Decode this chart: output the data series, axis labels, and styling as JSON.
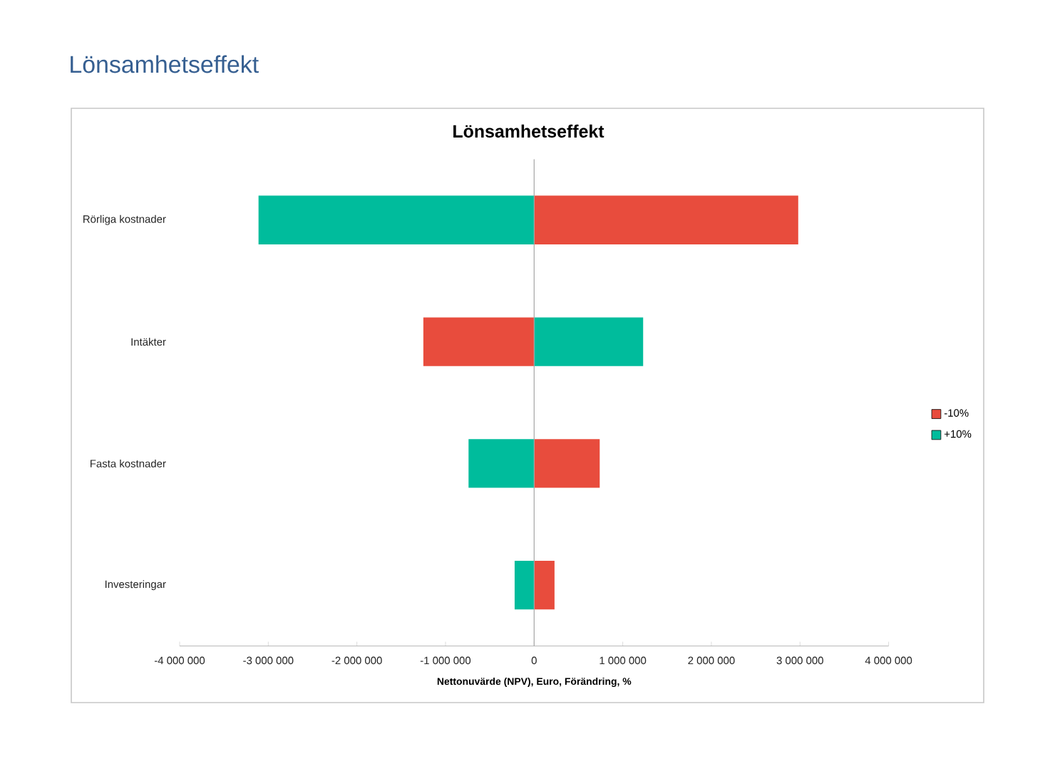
{
  "chart_data": {
    "type": "bar",
    "orientation": "horizontal",
    "stacked": true,
    "title": "Lönsamhetseffekt",
    "annotations": [
      "Lönsamhetseffekt"
    ],
    "xlabel": "Nettonuvärde (NPV), Euro, Förändring, %",
    "categories": [
      "Rörliga kostnader",
      "Intäkter",
      "Fasta kostnader",
      "Investeringar"
    ],
    "series": [
      {
        "name": "-10%",
        "color": "#e84c3d",
        "values": [
          2980000,
          -1250000,
          740000,
          230000
        ]
      },
      {
        "name": "+10%",
        "color": "#00bc9c",
        "values": [
          -3110000,
          1230000,
          -740000,
          -220000
        ]
      }
    ],
    "xlim": [
      -4000000,
      4000000
    ],
    "xticks": [
      {
        "value": -4000000,
        "label": "-4 000 000"
      },
      {
        "value": -3000000,
        "label": "-3 000 000"
      },
      {
        "value": -2000000,
        "label": "-2 000 000"
      },
      {
        "value": -1000000,
        "label": "-1 000 000"
      },
      0,
      {
        "value": 1000000,
        "label": "1 000 000"
      },
      {
        "value": 2000000,
        "label": "2 000 000"
      },
      {
        "value": 3000000,
        "label": "3 000 000"
      },
      {
        "value": 4000000,
        "label": "4 000 000"
      }
    ],
    "legend": "right"
  }
}
